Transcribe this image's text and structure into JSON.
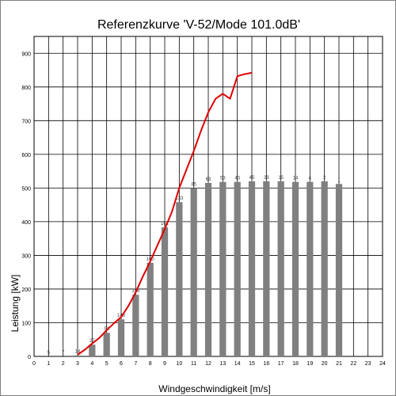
{
  "chart_data": {
    "type": "bar",
    "title": "Referenzkurve 'V-52/Mode 101.0dB'",
    "xlabel": "Windgeschwindigkeit [m/s]",
    "ylabel": "Leistung [kW]",
    "xlim": [
      0,
      24
    ],
    "ylim": [
      0,
      950
    ],
    "x_ticks": [
      "0",
      "1",
      "2",
      "3",
      "4",
      "5",
      "6",
      "7",
      "8",
      "9",
      "10",
      "11",
      "12",
      "13",
      "14",
      "15",
      "16",
      "17",
      "18",
      "19",
      "20",
      "21",
      "22",
      "23",
      "24"
    ],
    "y_ticks": [
      "0",
      "100",
      "200",
      "300",
      "400",
      "500",
      "600",
      "700",
      "800",
      "900"
    ],
    "grid": true,
    "colors": {
      "bars": "#808080",
      "curve": "#e00000",
      "grid": "#000000"
    },
    "bars": {
      "x": [
        1,
        2,
        3,
        4,
        5,
        6,
        7,
        8,
        9,
        10,
        11,
        12,
        13,
        14,
        15,
        16,
        17,
        18,
        19,
        20,
        21
      ],
      "values": [
        0,
        0,
        3,
        35,
        70,
        110,
        183,
        278,
        383,
        458,
        500,
        515,
        518,
        518,
        520,
        520,
        520,
        518,
        518,
        520,
        512
      ],
      "labels": [
        "5",
        "7",
        "14",
        "27",
        "51",
        "148",
        "158",
        "160",
        "161",
        "133",
        "85",
        "63",
        "53",
        "43",
        "45",
        "33",
        "15",
        "14",
        "4",
        "2",
        "1"
      ]
    },
    "curve": {
      "x": [
        3,
        3.5,
        4,
        4.5,
        5,
        5.5,
        6,
        6.5,
        7,
        7.5,
        8,
        8.5,
        9,
        9.5,
        10,
        10.5,
        11,
        11.5,
        12,
        12.5,
        13,
        13.5,
        14,
        14.5,
        15
      ],
      "y": [
        5,
        20,
        38,
        55,
        78,
        98,
        117,
        150,
        190,
        238,
        282,
        330,
        378,
        430,
        500,
        555,
        610,
        670,
        725,
        765,
        780,
        765,
        832,
        838,
        842
      ]
    }
  }
}
